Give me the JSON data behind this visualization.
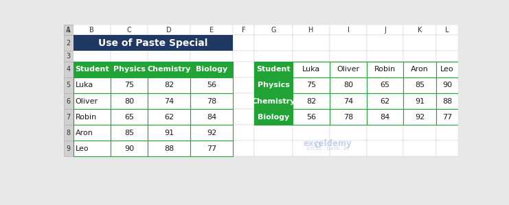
{
  "title": "Use of Paste Special",
  "title_bg": "#1F3864",
  "title_fg": "#FFFFFF",
  "header_bg": "#21A336",
  "header_fg": "#FFFFFF",
  "grid_color": "#21A336",
  "excel_bg": "#E8E8E8",
  "col_letters": [
    "A",
    "B",
    "C",
    "D",
    "E",
    "F",
    "G",
    "H",
    "I",
    "J",
    "K",
    "L"
  ],
  "row_numbers": [
    "1",
    "2",
    "3",
    "4",
    "5",
    "6",
    "7",
    "8",
    "9"
  ],
  "col_edges": [
    0,
    18,
    88,
    158,
    238,
    318,
    358,
    430,
    500,
    570,
    638,
    700,
    741
  ],
  "row_edges": [
    299,
    279,
    249,
    229,
    199,
    169,
    139,
    109,
    79,
    49
  ],
  "table1_headers": [
    "Student",
    "Physics",
    "Chemistry",
    "Biology"
  ],
  "table1_data": [
    [
      "Luka",
      75,
      82,
      56
    ],
    [
      "Oliver",
      80,
      74,
      78
    ],
    [
      "Robin",
      65,
      62,
      84
    ],
    [
      "Aron",
      85,
      91,
      92
    ],
    [
      "Leo",
      90,
      88,
      77
    ]
  ],
  "table2_headers": [
    "Student",
    "Luka",
    "Oliver",
    "Robin",
    "Aron",
    "Leo"
  ],
  "table2_data": [
    [
      "Physics",
      75,
      80,
      65,
      85,
      90
    ],
    [
      "Chemistry",
      82,
      74,
      62,
      91,
      88
    ],
    [
      "Biology",
      56,
      78,
      84,
      92,
      77
    ]
  ],
  "watermark_line1": "exceldemy",
  "watermark_line2": "EXCEL - DATA - BI",
  "watermark_color": "#4472C4",
  "watermark_alpha": 0.3
}
